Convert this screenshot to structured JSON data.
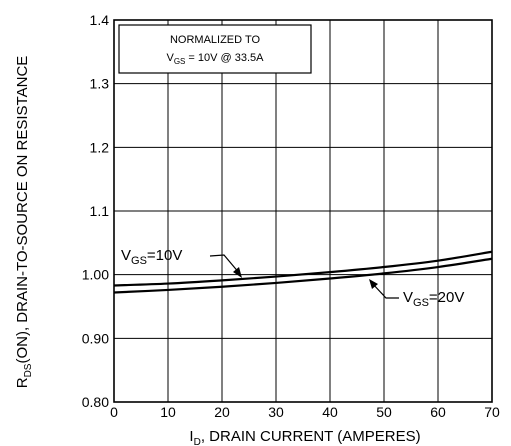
{
  "chart_data": {
    "type": "line",
    "title": "",
    "xlabel": {
      "main": "I",
      "sub": "D",
      "rest": ", DRAIN CURRENT (AMPERES)"
    },
    "ylabel": {
      "main": "R",
      "sub": "DS",
      "rest": "(ON), DRAIN-TO-SOURCE ON RESISTANCE"
    },
    "xlim": [
      0,
      70
    ],
    "ylim": [
      0.8,
      1.4
    ],
    "grid": true,
    "x_ticks": [
      0,
      10,
      20,
      30,
      40,
      50,
      60,
      70
    ],
    "x_tick_labels": [
      "0",
      "10",
      "20",
      "30",
      "40",
      "50",
      "60",
      "70"
    ],
    "y_ticks": [
      0.8,
      0.9,
      1.0,
      1.1,
      1.2,
      1.3,
      1.4
    ],
    "y_tick_labels": [
      "0.80",
      "0.90",
      "1.00",
      "1.1",
      "1.2",
      "1.3",
      "1.4"
    ],
    "annotation_box": {
      "line1": "NORMALIZED TO",
      "line2_main": "V",
      "line2_sub": "GS",
      "line2_rest": " = 10V  @  33.5A"
    },
    "series": [
      {
        "label_main": "V",
        "label_sub": "GS",
        "label_rest": "=10V",
        "x": [
          0,
          10,
          20,
          30,
          40,
          50,
          60,
          70
        ],
        "y": [
          0.983,
          0.986,
          0.991,
          0.997,
          1.004,
          1.012,
          1.022,
          1.036
        ]
      },
      {
        "label_main": "V",
        "label_sub": "GS",
        "label_rest": "=20V",
        "x": [
          0,
          10,
          20,
          30,
          40,
          50,
          60,
          70
        ],
        "y": [
          0.972,
          0.976,
          0.981,
          0.987,
          0.994,
          1.002,
          1.012,
          1.025
        ]
      }
    ]
  }
}
